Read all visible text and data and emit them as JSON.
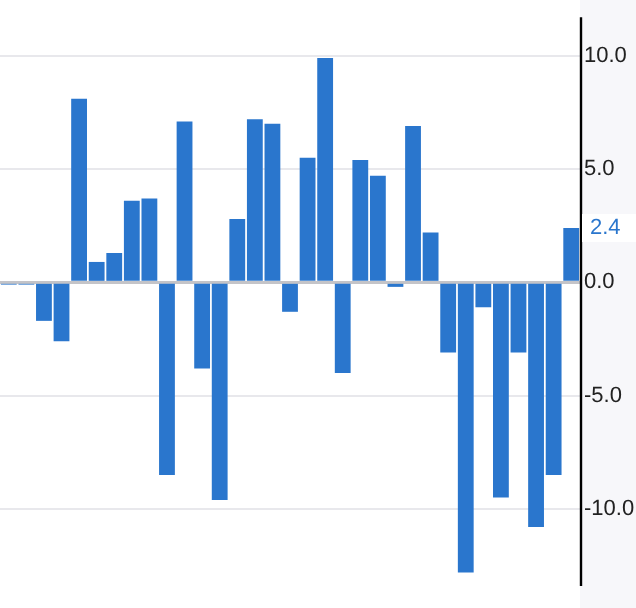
{
  "chart_data": {
    "type": "bar",
    "categories": [
      null,
      null,
      null,
      null,
      null,
      null,
      null,
      null,
      null,
      null,
      null,
      null,
      null,
      null,
      null,
      null,
      null,
      null,
      null,
      null,
      null,
      null,
      null,
      null,
      null,
      null,
      null,
      null,
      null,
      null,
      null,
      null,
      null
    ],
    "values": [
      -0.1,
      -0.1,
      -1.7,
      -2.6,
      8.1,
      0.9,
      1.3,
      3.6,
      3.7,
      -8.5,
      7.1,
      -3.8,
      -9.6,
      2.8,
      7.2,
      7.0,
      -1.3,
      5.5,
      9.9,
      -4.0,
      5.4,
      4.7,
      -0.2,
      6.9,
      2.2,
      -3.1,
      -12.8,
      -1.1,
      -9.5,
      -3.1,
      -10.8,
      -8.5,
      2.4
    ],
    "color": "#2a76cd",
    "ylim": [
      -13.4,
      11.7
    ],
    "yticks": [
      {
        "value": -10,
        "label": "-10.0"
      },
      {
        "value": -5,
        "label": "-5.0"
      },
      {
        "value": 0,
        "label": "0.0"
      },
      {
        "value": 5,
        "label": "5.0"
      },
      {
        "value": 10,
        "label": "10.0"
      }
    ],
    "grid": "y",
    "tick_labels": "y",
    "annotations": [
      {
        "text": "2.4",
        "y": 2.4
      }
    ]
  }
}
